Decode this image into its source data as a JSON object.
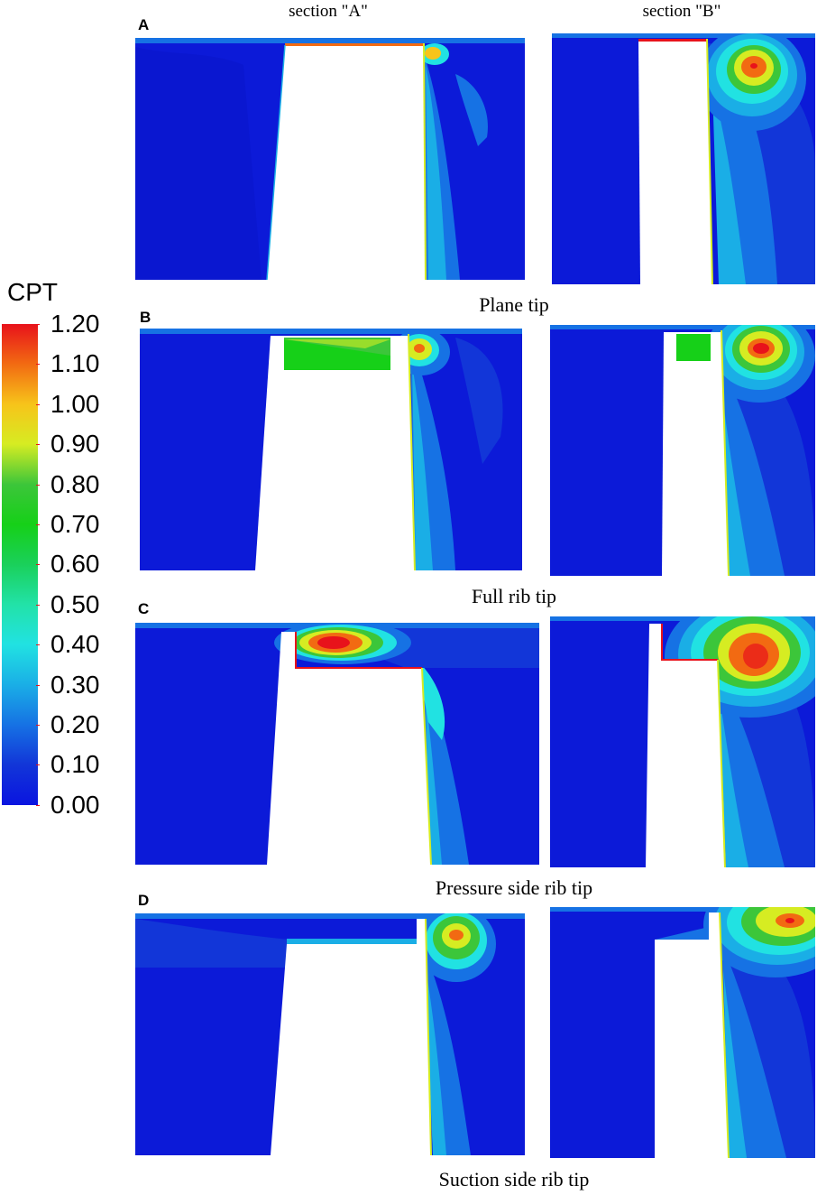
{
  "columns": [
    "section \"A\"",
    "section \"B\""
  ],
  "panels": [
    {
      "letter": "A",
      "caption": "Plane tip"
    },
    {
      "letter": "B",
      "caption": "Full rib tip"
    },
    {
      "letter": "C",
      "caption": "Pressure side rib tip"
    },
    {
      "letter": "D",
      "caption": "Suction side rib tip"
    }
  ],
  "legend": {
    "title": "CPT",
    "labels": [
      "1.20",
      "1.10",
      "1.00",
      "0.90",
      "0.80",
      "0.70",
      "0.60",
      "0.50",
      "0.40",
      "0.30",
      "0.20",
      "0.10",
      "0.00"
    ],
    "colors": [
      "#e8121b",
      "#f26a12",
      "#f7c41a",
      "#d6ec22",
      "#3cc63a",
      "#16d018",
      "#1ad05a",
      "#22e2a8",
      "#21e2e2",
      "#1aaee6",
      "#1672e4",
      "#1236d8",
      "#0a14e0"
    ]
  },
  "colors": {
    "background_fluid": "#0c1ad8",
    "deep_fluid": "#0a16cc"
  }
}
